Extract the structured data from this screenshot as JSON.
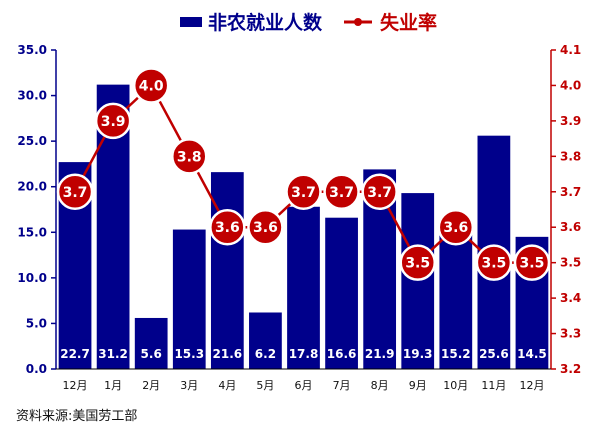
{
  "chart_data": {
    "type": "bar",
    "categories": [
      "12月",
      "1月",
      "2月",
      "3月",
      "4月",
      "5月",
      "6月",
      "7月",
      "8月",
      "9月",
      "10月",
      "11月",
      "12月"
    ],
    "series": [
      {
        "name": "非农就业人数",
        "type": "bar",
        "axis": "left",
        "values": [
          22.7,
          31.2,
          5.6,
          15.3,
          21.6,
          6.2,
          17.8,
          16.6,
          21.9,
          19.3,
          15.2,
          25.6,
          14.5
        ],
        "color": "#00008b",
        "value_labels": [
          "22.7",
          "31.2",
          "5.6",
          "15.3",
          "21.6",
          "6.2",
          "17.8",
          "16.6",
          "21.9",
          "19.3",
          "15.2",
          "25.6",
          "14.5"
        ]
      },
      {
        "name": "失业率",
        "type": "line",
        "axis": "right",
        "values": [
          3.7,
          3.9,
          4.0,
          3.8,
          3.6,
          3.6,
          3.7,
          3.7,
          3.7,
          3.5,
          3.6,
          3.5,
          3.5
        ],
        "color": "#c00000",
        "value_labels": [
          "3.7",
          "3.9",
          "4.0",
          "3.8",
          "3.6",
          "3.6",
          "3.7",
          "3.7",
          "3.7",
          "3.5",
          "3.6",
          "3.5",
          "3.5"
        ]
      }
    ],
    "left_axis": {
      "ylim": [
        0,
        35
      ],
      "ticks": [
        "0.0",
        "5.0",
        "10.0",
        "15.0",
        "20.0",
        "25.0",
        "30.0",
        "35.0"
      ],
      "color": "#00008b"
    },
    "right_axis": {
      "ylim": [
        3.2,
        4.1
      ],
      "ticks": [
        "3.2",
        "3.3",
        "3.4",
        "3.5",
        "3.6",
        "3.7",
        "3.8",
        "3.9",
        "4.0",
        "4.1"
      ],
      "color": "#c00000"
    },
    "legend": {
      "position": "top",
      "items": [
        "非农就业人数",
        "失业率"
      ]
    },
    "grid": false
  },
  "source": "资料来源:美国劳工部"
}
